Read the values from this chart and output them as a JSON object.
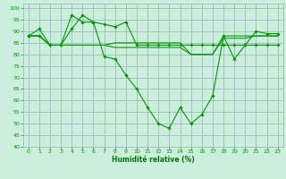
{
  "background_color": "#cceedd",
  "grid_color": "#99bbbb",
  "line_color": "#009900",
  "xlabel": "Humidité relative (%)",
  "xlabel_color": "#007700",
  "ylim": [
    40,
    102
  ],
  "xlim": [
    -0.5,
    23.5
  ],
  "yticks": [
    40,
    45,
    50,
    55,
    60,
    65,
    70,
    75,
    80,
    85,
    90,
    95,
    100
  ],
  "xticks": [
    0,
    1,
    2,
    3,
    4,
    5,
    6,
    7,
    8,
    9,
    10,
    11,
    12,
    13,
    14,
    15,
    16,
    17,
    18,
    19,
    20,
    21,
    22,
    23
  ],
  "series_main": [
    88,
    91,
    84,
    84,
    91,
    97,
    94,
    79,
    78,
    71,
    65,
    57,
    50,
    48,
    57,
    50,
    54,
    62,
    88,
    78,
    84,
    90,
    89,
    89
  ],
  "series_flat1": [
    88,
    88,
    84,
    84,
    84,
    84,
    84,
    84,
    85,
    85,
    85,
    85,
    85,
    85,
    85,
    80,
    80,
    80,
    88,
    88,
    88,
    88,
    88,
    88
  ],
  "series_flat2": [
    88,
    88,
    84,
    84,
    84,
    84,
    84,
    84,
    83,
    83,
    83,
    83,
    83,
    83,
    83,
    80,
    80,
    80,
    87,
    87,
    87,
    88,
    88,
    88
  ],
  "series_upper": [
    88,
    88,
    84,
    84,
    97,
    94,
    94,
    93,
    92,
    94,
    84,
    84,
    84,
    84,
    84,
    84,
    84,
    84,
    84,
    84,
    84,
    84,
    84,
    84
  ]
}
